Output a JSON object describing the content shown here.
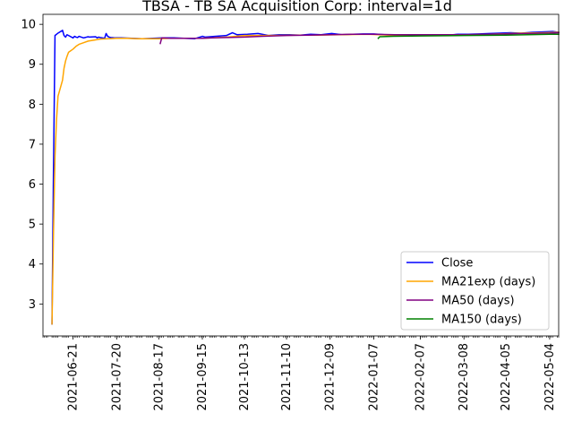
{
  "chart_data": {
    "type": "line",
    "title": "TBSA - TB SA Acquisition Corp: interval=1d",
    "xlabel": "",
    "ylabel": "",
    "x_range": [
      "2021-06-01",
      "2022-05-10"
    ],
    "ylim": [
      2.2,
      10.25
    ],
    "y_ticks": [
      "3",
      "4",
      "5",
      "6",
      "7",
      "8",
      "9",
      "10"
    ],
    "x_ticks": [
      "2021-06-21",
      "2021-07-20",
      "2021-08-17",
      "2021-09-15",
      "2021-10-13",
      "2021-11-10",
      "2021-12-09",
      "2022-01-07",
      "2022-02-07",
      "2022-03-08",
      "2022-04-05",
      "2022-05-04"
    ],
    "grid": false,
    "legend_position": "lower right",
    "series": [
      {
        "name": "Close",
        "color": "#0000ff",
        "x": [
          "2021-06-07",
          "2021-06-08",
          "2021-06-09",
          "2021-06-10",
          "2021-06-11",
          "2021-06-14",
          "2021-06-15",
          "2021-06-16",
          "2021-06-17",
          "2021-06-18",
          "2021-06-21",
          "2021-06-22",
          "2021-06-23",
          "2021-06-24",
          "2021-06-25",
          "2021-06-28",
          "2021-06-29",
          "2021-06-30",
          "2021-07-01",
          "2021-07-02",
          "2021-07-06",
          "2021-07-07",
          "2021-07-08",
          "2021-07-09",
          "2021-07-12",
          "2021-07-13",
          "2021-07-14",
          "2021-07-15",
          "2021-07-16",
          "2021-07-19",
          "2021-07-20",
          "2021-07-23",
          "2021-07-30",
          "2021-08-06",
          "2021-08-13",
          "2021-08-20",
          "2021-08-27",
          "2021-09-03",
          "2021-09-10",
          "2021-09-15",
          "2021-09-17",
          "2021-09-24",
          "2021-10-01",
          "2021-10-05",
          "2021-10-08",
          "2021-10-15",
          "2021-10-22",
          "2021-10-29",
          "2021-11-05",
          "2021-11-12",
          "2021-11-19",
          "2021-11-26",
          "2021-12-03",
          "2021-12-10",
          "2021-12-17",
          "2021-12-24",
          "2021-12-31",
          "2022-01-07",
          "2022-01-14",
          "2022-01-21",
          "2022-01-28",
          "2022-02-04",
          "2022-02-11",
          "2022-02-18",
          "2022-02-25",
          "2022-03-04",
          "2022-03-11",
          "2022-03-18",
          "2022-03-25",
          "2022-04-01",
          "2022-04-08",
          "2022-04-15",
          "2022-04-22",
          "2022-04-29",
          "2022-05-06",
          "2022-05-10"
        ],
        "values": [
          2.5,
          6.4,
          9.72,
          9.75,
          9.78,
          9.85,
          9.72,
          9.68,
          9.74,
          9.72,
          9.66,
          9.7,
          9.68,
          9.67,
          9.7,
          9.66,
          9.67,
          9.68,
          9.69,
          9.68,
          9.69,
          9.66,
          9.68,
          9.67,
          9.65,
          9.77,
          9.7,
          9.68,
          9.67,
          9.66,
          9.66,
          9.66,
          9.65,
          9.64,
          9.65,
          9.66,
          9.66,
          9.65,
          9.64,
          9.7,
          9.68,
          9.7,
          9.72,
          9.79,
          9.74,
          9.75,
          9.77,
          9.72,
          9.74,
          9.74,
          9.73,
          9.75,
          9.74,
          9.77,
          9.74,
          9.75,
          9.76,
          9.76,
          9.74,
          9.73,
          9.72,
          9.74,
          9.72,
          9.72,
          9.73,
          9.75,
          9.75,
          9.76,
          9.77,
          9.78,
          9.79,
          9.78,
          9.8,
          9.81,
          9.82,
          9.8
        ]
      },
      {
        "name": "MA21exp (days)",
        "color": "#ffa500",
        "x": [
          "2021-06-07",
          "2021-06-08",
          "2021-06-09",
          "2021-06-10",
          "2021-06-11",
          "2021-06-14",
          "2021-06-15",
          "2021-06-16",
          "2021-06-17",
          "2021-06-18",
          "2021-06-21",
          "2021-06-23",
          "2021-06-25",
          "2021-06-28",
          "2021-07-01",
          "2021-07-06",
          "2021-07-09",
          "2021-07-14",
          "2021-07-20",
          "2021-07-27",
          "2021-08-03",
          "2021-08-10",
          "2021-08-17",
          "2021-08-24",
          "2021-09-01",
          "2021-09-15",
          "2021-10-01",
          "2021-10-13",
          "2021-11-01",
          "2021-11-15",
          "2021-12-01",
          "2021-12-15",
          "2022-01-03",
          "2022-01-18",
          "2022-02-01",
          "2022-02-15",
          "2022-03-01",
          "2022-03-15",
          "2022-04-01",
          "2022-04-15",
          "2022-05-01",
          "2022-05-10"
        ],
        "values": [
          2.5,
          4.8,
          6.7,
          7.6,
          8.2,
          8.6,
          8.9,
          9.08,
          9.2,
          9.3,
          9.38,
          9.45,
          9.5,
          9.54,
          9.58,
          9.61,
          9.63,
          9.64,
          9.65,
          9.65,
          9.64,
          9.64,
          9.64,
          9.65,
          9.65,
          9.65,
          9.68,
          9.72,
          9.72,
          9.73,
          9.73,
          9.74,
          9.75,
          9.73,
          9.72,
          9.72,
          9.73,
          9.74,
          9.76,
          9.78,
          9.79,
          9.8
        ]
      },
      {
        "name": "MA50 (days)",
        "color": "#800080",
        "x": [
          "2021-08-18",
          "2021-08-19",
          "2021-08-25",
          "2021-09-01",
          "2021-09-08",
          "2021-09-15",
          "2021-09-22",
          "2021-10-01",
          "2021-10-13",
          "2021-10-25",
          "2021-11-10",
          "2021-11-24",
          "2021-12-09",
          "2021-12-23",
          "2022-01-07",
          "2022-01-21",
          "2022-02-07",
          "2022-02-21",
          "2022-03-08",
          "2022-03-22",
          "2022-04-05",
          "2022-04-19",
          "2022-05-04",
          "2022-05-10"
        ],
        "values": [
          9.52,
          9.66,
          9.65,
          9.65,
          9.65,
          9.65,
          9.66,
          9.67,
          9.68,
          9.7,
          9.72,
          9.73,
          9.74,
          9.75,
          9.75,
          9.74,
          9.74,
          9.74,
          9.74,
          9.75,
          9.76,
          9.77,
          9.78,
          9.79
        ]
      },
      {
        "name": "MA150 (days)",
        "color": "#008000",
        "x": [
          "2022-01-10",
          "2022-01-11",
          "2022-01-20",
          "2022-02-07",
          "2022-03-08",
          "2022-04-05",
          "2022-05-04",
          "2022-05-10"
        ],
        "values": [
          9.65,
          9.69,
          9.7,
          9.71,
          9.72,
          9.73,
          9.75,
          9.75
        ]
      }
    ]
  }
}
